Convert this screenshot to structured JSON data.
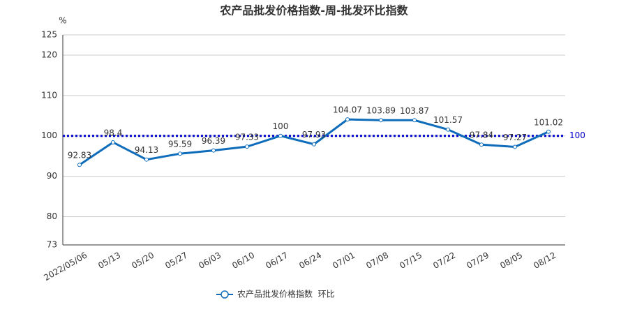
{
  "chart_data": {
    "type": "line",
    "title": "农产品批发价格指数-周-批发环比指数",
    "y_label": "%",
    "categories": [
      "2022/05/06",
      "05/13",
      "05/20",
      "05/27",
      "06/03",
      "06/10",
      "06/17",
      "06/24",
      "07/01",
      "07/08",
      "07/15",
      "07/22",
      "07/29",
      "08/05",
      "08/12"
    ],
    "series": [
      {
        "name": "农产品批发价格指数  环比",
        "color": "#0e6cba",
        "values": [
          92.83,
          98.4,
          94.13,
          95.59,
          96.39,
          97.33,
          100,
          97.93,
          104.07,
          103.89,
          103.87,
          101.57,
          97.84,
          97.27,
          101.02
        ]
      }
    ],
    "reference_line": {
      "value": 100,
      "color": "#0000cc"
    },
    "ylim": [
      73,
      125
    ],
    "yticks": [
      73,
      80,
      90,
      100,
      110,
      120,
      125
    ],
    "grid": true
  }
}
